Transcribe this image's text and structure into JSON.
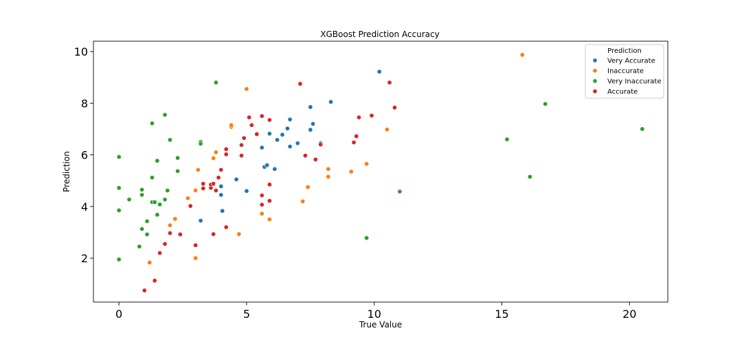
{
  "chart_data": {
    "type": "scatter",
    "title": "XGBoost Prediction Accuracy",
    "xlabel": "True Value",
    "ylabel": "Prediction",
    "xlim": [
      -1,
      21.5
    ],
    "ylim": [
      0.3,
      10.4
    ],
    "xticks": [
      0,
      5,
      10,
      15,
      20
    ],
    "yticks": [
      2,
      4,
      6,
      8,
      10
    ],
    "grid": false,
    "legend": {
      "title": "Prediction",
      "placement": "top-right"
    },
    "series": [
      {
        "name": "Very Accurate",
        "color": "#1f77b4",
        "points": [
          [
            3.2,
            3.45
          ],
          [
            4.0,
            4.45
          ],
          [
            4.0,
            4.78
          ],
          [
            4.05,
            3.83
          ],
          [
            4.6,
            5.05
          ],
          [
            5.0,
            4.6
          ],
          [
            5.7,
            5.53
          ],
          [
            5.8,
            5.6
          ],
          [
            6.1,
            5.45
          ],
          [
            5.6,
            6.28
          ],
          [
            5.9,
            6.82
          ],
          [
            6.2,
            6.58
          ],
          [
            6.4,
            6.78
          ],
          [
            6.6,
            7.02
          ],
          [
            6.7,
            7.37
          ],
          [
            6.7,
            6.32
          ],
          [
            7.0,
            6.45
          ],
          [
            7.5,
            7.85
          ],
          [
            7.5,
            6.97
          ],
          [
            7.6,
            7.2
          ],
          [
            7.9,
            6.45
          ],
          [
            8.3,
            8.05
          ],
          [
            10.2,
            9.22
          ]
        ]
      },
      {
        "name": "Inaccurate",
        "color": "#ff7f0e",
        "points": [
          [
            1.2,
            1.83
          ],
          [
            2.0,
            3.27
          ],
          [
            2.2,
            3.52
          ],
          [
            2.7,
            4.32
          ],
          [
            3.0,
            4.62
          ],
          [
            3.0,
            2.0
          ],
          [
            3.1,
            5.42
          ],
          [
            3.7,
            5.87
          ],
          [
            3.8,
            6.1
          ],
          [
            4.4,
            7.08
          ],
          [
            4.4,
            7.15
          ],
          [
            4.7,
            2.93
          ],
          [
            5.0,
            8.55
          ],
          [
            5.6,
            3.72
          ],
          [
            5.9,
            3.5
          ],
          [
            7.2,
            4.2
          ],
          [
            7.4,
            4.75
          ],
          [
            8.2,
            5.45
          ],
          [
            8.2,
            5.15
          ],
          [
            9.1,
            5.35
          ],
          [
            9.7,
            5.65
          ],
          [
            10.5,
            6.98
          ],
          [
            15.8,
            9.87
          ]
        ]
      },
      {
        "name": "Very Inaccurate",
        "color": "#2ca02c",
        "points": [
          [
            0.0,
            5.92
          ],
          [
            0.0,
            4.72
          ],
          [
            0.0,
            3.85
          ],
          [
            0.0,
            1.95
          ],
          [
            0.4,
            4.27
          ],
          [
            0.8,
            2.45
          ],
          [
            0.9,
            4.65
          ],
          [
            0.9,
            4.45
          ],
          [
            0.9,
            3.13
          ],
          [
            1.1,
            3.43
          ],
          [
            1.1,
            2.92
          ],
          [
            1.3,
            7.22
          ],
          [
            1.3,
            5.12
          ],
          [
            1.3,
            4.17
          ],
          [
            1.4,
            4.17
          ],
          [
            1.5,
            5.77
          ],
          [
            1.5,
            3.68
          ],
          [
            1.6,
            4.08
          ],
          [
            1.8,
            7.55
          ],
          [
            1.8,
            4.27
          ],
          [
            1.9,
            4.62
          ],
          [
            2.0,
            6.58
          ],
          [
            2.3,
            5.88
          ],
          [
            2.3,
            5.37
          ],
          [
            3.2,
            6.5
          ],
          [
            3.2,
            6.43
          ],
          [
            3.8,
            8.8
          ],
          [
            9.7,
            2.78
          ],
          [
            11.0,
            4.58
          ],
          [
            15.2,
            6.6
          ],
          [
            16.1,
            5.15
          ],
          [
            16.7,
            7.97
          ],
          [
            20.5,
            7.0
          ]
        ]
      },
      {
        "name": "Accurate",
        "color": "#d62728",
        "points": [
          [
            1.0,
            0.75
          ],
          [
            1.4,
            1.13
          ],
          [
            1.6,
            2.2
          ],
          [
            1.8,
            2.55
          ],
          [
            2.0,
            2.97
          ],
          [
            2.4,
            2.92
          ],
          [
            2.8,
            4.02
          ],
          [
            3.0,
            2.5
          ],
          [
            3.3,
            4.88
          ],
          [
            3.3,
            4.7
          ],
          [
            3.6,
            4.72
          ],
          [
            3.6,
            4.85
          ],
          [
            3.7,
            4.88
          ],
          [
            3.7,
            2.93
          ],
          [
            3.8,
            4.62
          ],
          [
            3.9,
            5.12
          ],
          [
            4.0,
            5.42
          ],
          [
            4.2,
            6.22
          ],
          [
            4.2,
            6.02
          ],
          [
            4.2,
            3.2
          ],
          [
            4.8,
            6.38
          ],
          [
            4.8,
            5.97
          ],
          [
            4.9,
            6.65
          ],
          [
            5.1,
            7.45
          ],
          [
            5.2,
            7.15
          ],
          [
            5.4,
            6.8
          ],
          [
            5.6,
            7.5
          ],
          [
            5.6,
            4.43
          ],
          [
            5.6,
            4.07
          ],
          [
            5.9,
            7.35
          ],
          [
            5.9,
            4.85
          ],
          [
            5.9,
            4.22
          ],
          [
            7.1,
            8.75
          ],
          [
            7.3,
            5.97
          ],
          [
            7.7,
            5.82
          ],
          [
            7.9,
            6.4
          ],
          [
            9.2,
            6.48
          ],
          [
            9.3,
            6.72
          ],
          [
            9.4,
            7.45
          ],
          [
            9.9,
            7.52
          ],
          [
            10.6,
            8.8
          ],
          [
            10.8,
            7.83
          ]
        ]
      }
    ]
  }
}
